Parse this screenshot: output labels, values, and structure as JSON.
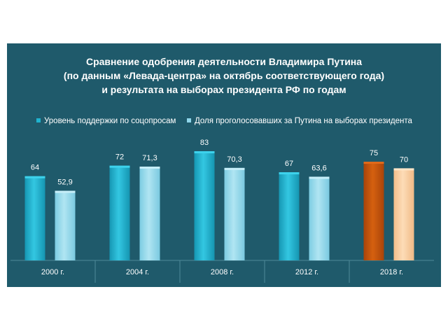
{
  "title_lines": [
    "Сравнение одобрения деятельности  Владимира Путина",
    "(по данным «Левада-центра»  на октябрь соответствующего  года)",
    "и результата на выборах президента РФ по годам"
  ],
  "legend": [
    {
      "label": "Уровень поддержки по соцопросам",
      "color": "#1fb3cf"
    },
    {
      "label": "Доля проголосовавших за Путина на выборах президента",
      "color": "#8fd6ea"
    }
  ],
  "chart_data": {
    "type": "bar",
    "categories": [
      "2000 г.",
      "2004 г.",
      "2008 г.",
      "2012 г.",
      "2018 г."
    ],
    "series": [
      {
        "name": "Уровень поддержки по соцопросам",
        "values": [
          64,
          72,
          83,
          67,
          75
        ],
        "labels": [
          "64",
          "72",
          "83",
          "67",
          "75"
        ]
      },
      {
        "name": "Доля проголосовавших за Путина на выборах президента",
        "values": [
          52.9,
          71.3,
          70.3,
          63.6,
          70
        ],
        "labels": [
          "52,9",
          "71,3",
          "70,3",
          "63,6",
          "70"
        ]
      }
    ],
    "ylim": [
      0,
      83
    ],
    "colors": {
      "series1": "#1fb3cf",
      "series2": "#8fd6ea",
      "highlight_series1": "#c0520a",
      "highlight_series2": "#f7c99b"
    },
    "highlight_category_index": 4
  }
}
